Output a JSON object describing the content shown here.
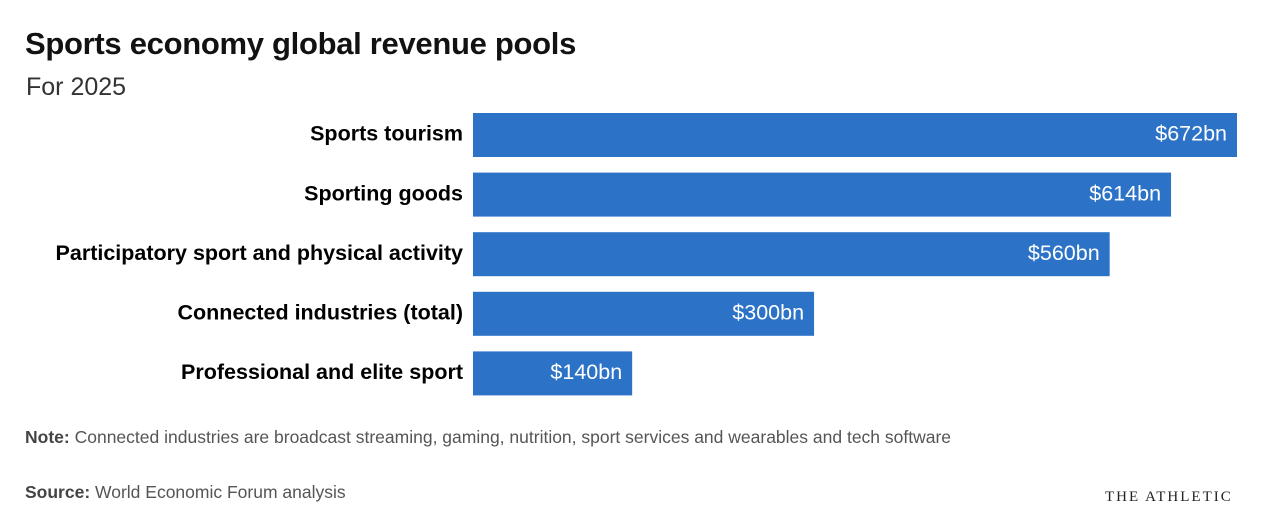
{
  "chart_data": {
    "type": "bar",
    "orientation": "horizontal",
    "title": "Sports economy global revenue pools",
    "subtitle": "For 2025",
    "categories": [
      "Sports tourism",
      "Sporting goods",
      "Participatory sport and physical activity",
      "Connected industries (total)",
      "Professional and elite sport"
    ],
    "values": [
      672,
      614,
      560,
      300,
      140
    ],
    "value_labels": [
      "$672bn",
      "$614bn",
      "$560bn",
      "$300bn",
      "$140bn"
    ],
    "color": "#2c73c8",
    "note": {
      "label": "Note:",
      "text": "Connected industries are broadcast streaming, gaming, nutrition, sport services and wearables and tech software"
    },
    "source": {
      "label": "Source:",
      "text": "World Economic Forum analysis"
    },
    "credit": "THE ATHLETIC"
  }
}
